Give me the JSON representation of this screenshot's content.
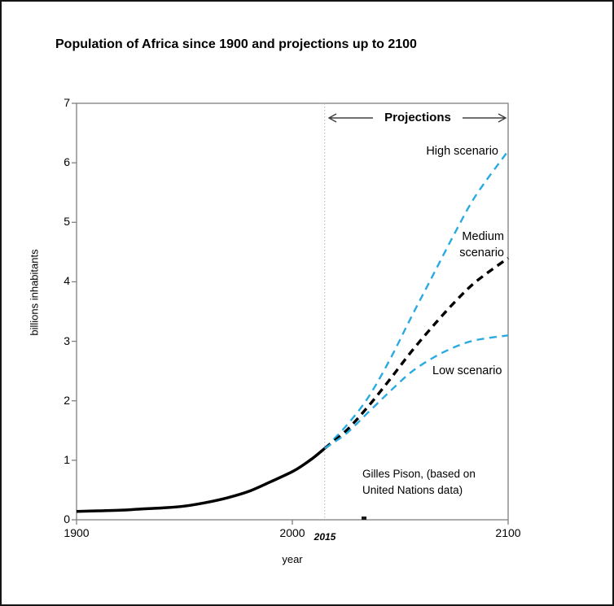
{
  "title": "Population of Africa since 1900 and projections up to 2100",
  "chart_data": {
    "type": "line",
    "title": "Population of Africa since 1900 and projections up to 2100",
    "xlabel": "year",
    "ylabel": "billions inhabitants",
    "xlim": [
      1900,
      2100
    ],
    "ylim": [
      0,
      7
    ],
    "x_ticks": [
      1900,
      2000,
      2100
    ],
    "y_ticks": [
      0,
      1,
      2,
      3,
      4,
      5,
      6,
      7
    ],
    "grid": false,
    "legend_position": "inline-labels",
    "projection_start_year": 2015,
    "projection_start_label": "2015",
    "annotations": {
      "projections_label": "Projections",
      "credit": "Gilles Pison, (based on\nUnited Nations data)"
    },
    "colors": {
      "historical": "#000000",
      "scenario_accent": "#29abe2",
      "axis": "#808080",
      "divider": "#b3b3b3"
    },
    "series": [
      {
        "name": "historical",
        "label": "",
        "color": "#000000",
        "style": "solid",
        "width": 3.5,
        "points": [
          [
            1900,
            0.14
          ],
          [
            1910,
            0.15
          ],
          [
            1920,
            0.16
          ],
          [
            1930,
            0.18
          ],
          [
            1940,
            0.2
          ],
          [
            1950,
            0.23
          ],
          [
            1960,
            0.29
          ],
          [
            1970,
            0.37
          ],
          [
            1980,
            0.48
          ],
          [
            1990,
            0.64
          ],
          [
            2000,
            0.81
          ],
          [
            2005,
            0.92
          ],
          [
            2010,
            1.05
          ],
          [
            2015,
            1.2
          ]
        ]
      },
      {
        "name": "high-scenario",
        "label": "High scenario",
        "color": "#29abe2",
        "style": "dashed",
        "width": 2.4,
        "points": [
          [
            2015,
            1.2
          ],
          [
            2025,
            1.58
          ],
          [
            2035,
            2.05
          ],
          [
            2045,
            2.68
          ],
          [
            2055,
            3.4
          ],
          [
            2065,
            4.1
          ],
          [
            2075,
            4.8
          ],
          [
            2085,
            5.45
          ],
          [
            2100,
            6.2
          ]
        ]
      },
      {
        "name": "medium-scenario",
        "label": "Medium scenario",
        "color": "#000000",
        "style": "dashed",
        "width": 3.4,
        "points": [
          [
            2015,
            1.2
          ],
          [
            2025,
            1.5
          ],
          [
            2035,
            1.9
          ],
          [
            2045,
            2.35
          ],
          [
            2055,
            2.82
          ],
          [
            2065,
            3.25
          ],
          [
            2075,
            3.65
          ],
          [
            2085,
            4.0
          ],
          [
            2100,
            4.4
          ]
        ]
      },
      {
        "name": "low-scenario",
        "label": "Low scenario",
        "color": "#29abe2",
        "style": "dashed",
        "width": 2.4,
        "points": [
          [
            2015,
            1.2
          ],
          [
            2025,
            1.45
          ],
          [
            2035,
            1.8
          ],
          [
            2045,
            2.15
          ],
          [
            2055,
            2.48
          ],
          [
            2065,
            2.72
          ],
          [
            2075,
            2.9
          ],
          [
            2085,
            3.02
          ],
          [
            2100,
            3.1
          ]
        ]
      }
    ]
  }
}
